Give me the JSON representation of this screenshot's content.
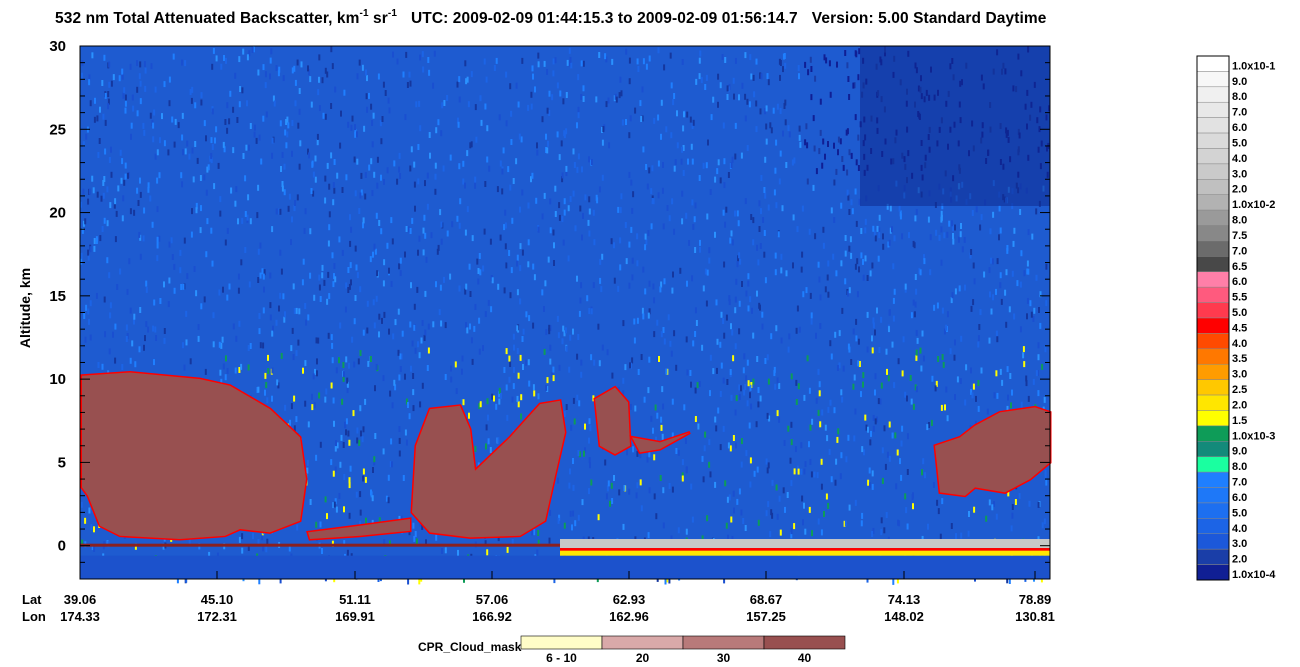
{
  "header": {
    "title_prefix": "532 nm Total Attenuated Backscatter, km",
    "title_exp1": "-1",
    "title_sr": " sr",
    "title_exp2": "-1",
    "title_utc": "UTC:  2009-02-09 01:44:15.3  to  2009-02-09 01:56:14.7",
    "title_version": "Version: 5.00  Standard  Daytime"
  },
  "chart_data": {
    "type": "heatmap",
    "title": "532 nm Total Attenuated Backscatter, km-1 sr-1",
    "ylabel": "Altitude, km",
    "ylim": [
      -2,
      30
    ],
    "yticks": [
      "30",
      "25",
      "20",
      "15",
      "10",
      "5",
      "0"
    ],
    "ytick_values": [
      30,
      25,
      20,
      15,
      10,
      5,
      0
    ],
    "x_rows": [
      {
        "label": "Lat",
        "values": [
          "39.06",
          "45.10",
          "51.11",
          "57.06",
          "62.93",
          "68.67",
          "74.13",
          "78.89"
        ]
      },
      {
        "label": "Lon",
        "values": [
          "174.33",
          "172.31",
          "169.91",
          "166.92",
          "162.96",
          "157.25",
          "148.02",
          "130.81"
        ]
      }
    ],
    "colorbar": {
      "labels": [
        "1.0x10-1",
        "9.0",
        "8.0",
        "7.0",
        "6.0",
        "5.0",
        "4.0",
        "3.0",
        "2.0",
        "1.0x10-2",
        "8.0",
        "7.5",
        "7.0",
        "6.5",
        "6.0",
        "5.5",
        "5.0",
        "4.5",
        "4.0",
        "3.5",
        "3.0",
        "2.5",
        "2.0",
        "1.5",
        "1.0x10-3",
        "9.0",
        "8.0",
        "7.0",
        "6.0",
        "5.0",
        "4.0",
        "3.0",
        "2.0",
        "1.0x10-4"
      ],
      "colors": [
        "#ffffff",
        "#f7f7f7",
        "#f0f0f0",
        "#e8e8e8",
        "#e2e2e2",
        "#dadada",
        "#d3d3d3",
        "#cacaca",
        "#c0c0c0",
        "#b2b2b2",
        "#9a9a9a",
        "#888888",
        "#6b6b6b",
        "#484848",
        "#ff7fa8",
        "#ff5a7e",
        "#ff3a4e",
        "#ff0000",
        "#ff4a00",
        "#ff7800",
        "#ff9c00",
        "#ffc800",
        "#ffe600",
        "#ffff00",
        "#0e9c58",
        "#138a7a",
        "#1affa0",
        "#1f7fff",
        "#1e78f8",
        "#1d6ff0",
        "#1c64e6",
        "#1c58da",
        "#1a3ea8",
        "#101f94"
      ]
    },
    "cloud_mask": {
      "title": "CPR_Cloud_mask",
      "labels": [
        "6 - 10",
        "20",
        "30",
        "40"
      ],
      "colors": [
        "#fffdc8",
        "#d9a9a9",
        "#b87a7a",
        "#985050"
      ]
    },
    "feature_colors": {
      "cloud": "#985050",
      "surface": "#c8c8c8",
      "noise_low": "#1e66e0",
      "noise_high": "#0c2a8c"
    }
  }
}
